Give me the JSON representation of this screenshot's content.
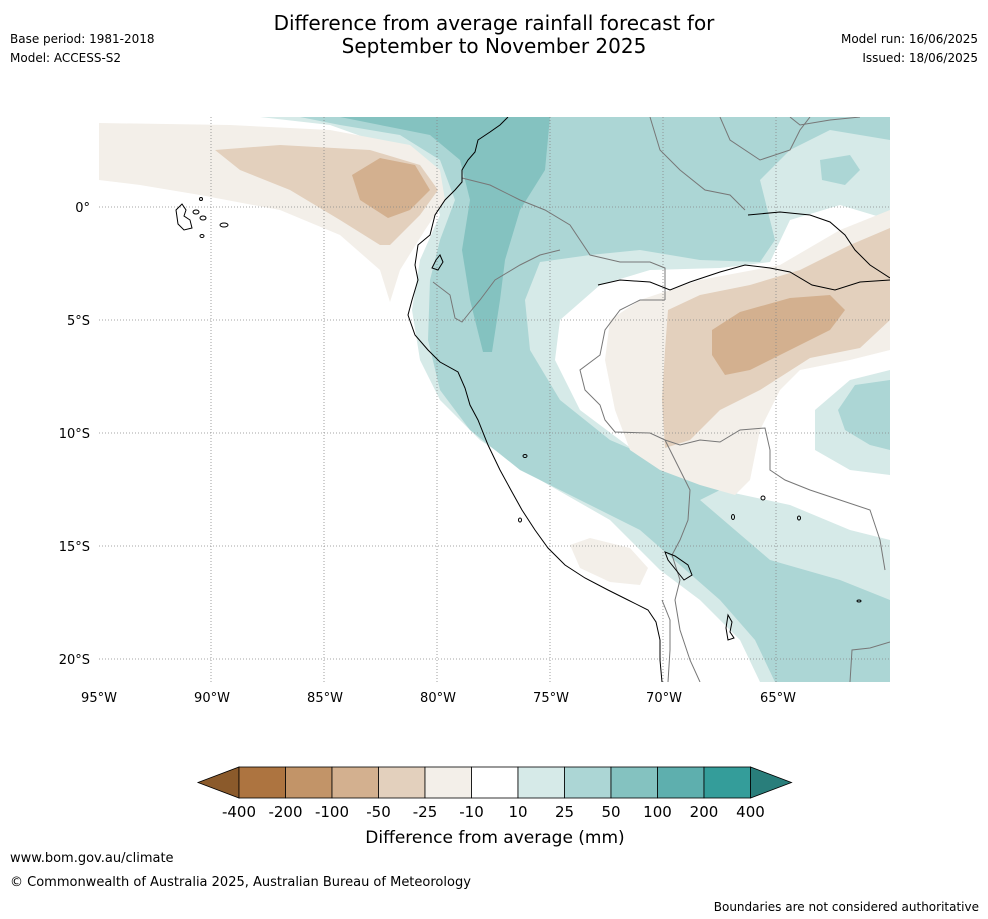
{
  "header": {
    "title_line1": "Difference from average rainfall forecast for",
    "title_line2": "September to November 2025",
    "base_period": "Base period: 1981-2018",
    "model": "Model: ACCESS-S2",
    "model_run": "Model run: 16/06/2025",
    "issued": "Issued: 18/06/2025"
  },
  "map": {
    "lon_ticks": [
      "95°W",
      "90°W",
      "85°W",
      "80°W",
      "75°W",
      "70°W",
      "65°W"
    ],
    "lat_ticks": [
      "0°",
      "5°S",
      "10°S",
      "15°S",
      "20°S"
    ]
  },
  "colorbar": {
    "labels": [
      "-400",
      "-200",
      "-100",
      "-50",
      "-25",
      "-10",
      "10",
      "25",
      "50",
      "100",
      "200",
      "400"
    ],
    "colors": [
      "#8b5a2b",
      "#ad7440",
      "#c29468",
      "#d3b08f",
      "#e3d0bd",
      "#f3efe9",
      "#ffffff",
      "#d6eae8",
      "#acd6d5",
      "#84c2c0",
      "#5eafae",
      "#349d9a",
      "#297e7b"
    ],
    "title": "Difference from average (mm)"
  },
  "footer": {
    "url": "www.bom.gov.au/climate",
    "copyright": "© Commonwealth of Australia 2025, Australian Bureau of Meteorology",
    "disclaimer": "Boundaries are not considered authoritative"
  }
}
